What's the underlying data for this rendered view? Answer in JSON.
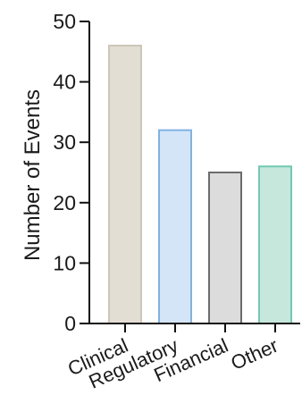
{
  "chart_data": {
    "type": "bar",
    "categories": [
      "Clinical",
      "Regulatory",
      "Financial",
      "Other"
    ],
    "values": [
      46,
      32,
      25,
      26
    ],
    "title": "",
    "xlabel": "",
    "ylabel": "Number of Events",
    "ylim": [
      0,
      50
    ],
    "yticks": [
      "0",
      "10",
      "20",
      "30",
      "40",
      "50"
    ],
    "grid": false,
    "legend": "none",
    "bar_colors": [
      {
        "fill": "#e3ded4",
        "stroke": "#cdc6b8"
      },
      {
        "fill": "#d4e5f7",
        "stroke": "#7fb3e3"
      },
      {
        "fill": "#dcdcdc",
        "stroke": "#6c6c6c"
      },
      {
        "fill": "#c6e7dc",
        "stroke": "#6fcab4"
      }
    ]
  }
}
